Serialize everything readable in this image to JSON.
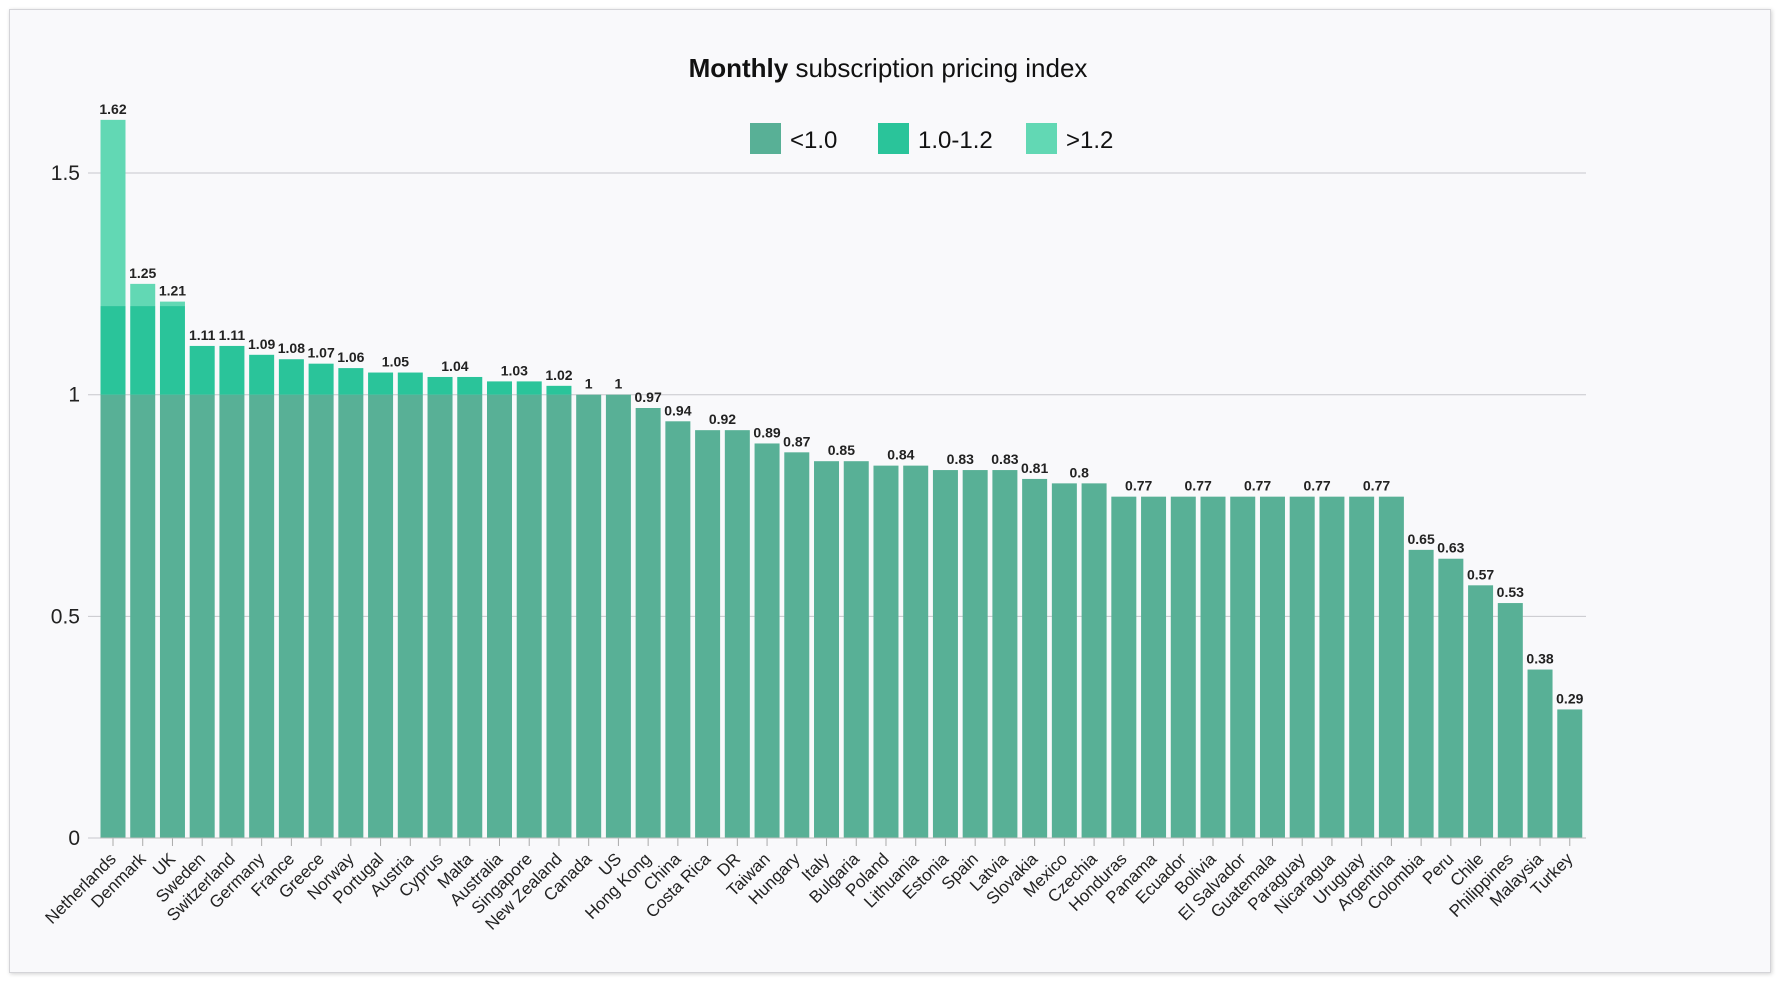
{
  "chart_data": {
    "type": "bar",
    "stacked_by_range": true,
    "title": "Monthly subscription pricing index",
    "title_bold": "Monthly",
    "title_rest": " subscription pricing index",
    "xlabel": "",
    "ylabel": "",
    "ylim": [
      0,
      1.62
    ],
    "yticks": [
      0,
      0.5,
      1,
      1.5
    ],
    "ytick_labels": [
      "0",
      "0.5",
      "1",
      "1.5"
    ],
    "grid": true,
    "legend_placement": "top-center",
    "legend": [
      {
        "label": "<1.0",
        "color": "#58b096"
      },
      {
        "label": "1.0-1.2",
        "color": "#2ac49a"
      },
      {
        "label": ">1.2",
        "color": "#62d8b4"
      }
    ],
    "thresholds": [
      1.0,
      1.2
    ],
    "categories": [
      "Netherlands",
      "Denmark",
      "UK",
      "Sweden",
      "Switzerland",
      "Germany",
      "France",
      "Greece",
      "Norway",
      "Portugal",
      "Austria",
      "Cyprus",
      "Malta",
      "Australia",
      "Singapore",
      "New Zealand",
      "Canada",
      "US",
      "Hong Kong",
      "China",
      "Costa Rica",
      "DR",
      "Taiwan",
      "Hungary",
      "Italy",
      "Bulgaria",
      "Poland",
      "Lithuania",
      "Estonia",
      "Spain",
      "Latvia",
      "Slovakia",
      "Mexico",
      "Czechia",
      "Honduras",
      "Panama",
      "Ecuador",
      "Bolivia",
      "El Salvador",
      "Guatemala",
      "Paraguay",
      "Nicaragua",
      "Uruguay",
      "Argentina",
      "Colombia",
      "Peru",
      "Chile",
      "Philippines",
      "Malaysia",
      "Turkey"
    ],
    "values": [
      1.62,
      1.25,
      1.21,
      1.11,
      1.11,
      1.09,
      1.08,
      1.07,
      1.06,
      1.05,
      1.05,
      1.04,
      1.04,
      1.03,
      1.03,
      1.02,
      1,
      1,
      0.97,
      0.94,
      0.92,
      0.92,
      0.89,
      0.87,
      0.85,
      0.85,
      0.84,
      0.84,
      0.83,
      0.83,
      0.83,
      0.81,
      0.8,
      0.8,
      0.77,
      0.77,
      0.77,
      0.77,
      0.77,
      0.77,
      0.77,
      0.77,
      0.77,
      0.77,
      0.65,
      0.63,
      0.57,
      0.53,
      0.38,
      0.29
    ],
    "value_labels": [
      {
        "text": "1.62",
        "bars": [
          "Netherlands"
        ]
      },
      {
        "text": "1.25",
        "bars": [
          "Denmark"
        ]
      },
      {
        "text": "1.21",
        "bars": [
          "UK"
        ]
      },
      {
        "text": "1.11",
        "bars": [
          "Sweden"
        ]
      },
      {
        "text": "1.11",
        "bars": [
          "Switzerland"
        ]
      },
      {
        "text": "1.09",
        "bars": [
          "Germany"
        ]
      },
      {
        "text": "1.08",
        "bars": [
          "France"
        ]
      },
      {
        "text": "1.07",
        "bars": [
          "Greece"
        ]
      },
      {
        "text": "1.06",
        "bars": [
          "Norway"
        ]
      },
      {
        "text": "1.05",
        "bars": [
          "Portugal",
          "Austria"
        ]
      },
      {
        "text": "1.04",
        "bars": [
          "Cyprus",
          "Malta"
        ]
      },
      {
        "text": "1.03",
        "bars": [
          "Australia",
          "Singapore"
        ]
      },
      {
        "text": "1.02",
        "bars": [
          "New Zealand"
        ]
      },
      {
        "text": "1",
        "bars": [
          "Canada"
        ]
      },
      {
        "text": "1",
        "bars": [
          "US"
        ]
      },
      {
        "text": "0.97",
        "bars": [
          "Hong Kong"
        ]
      },
      {
        "text": "0.94",
        "bars": [
          "China"
        ]
      },
      {
        "text": "0.92",
        "bars": [
          "Costa Rica",
          "DR"
        ]
      },
      {
        "text": "0.89",
        "bars": [
          "Taiwan"
        ]
      },
      {
        "text": "0.87",
        "bars": [
          "Hungary"
        ]
      },
      {
        "text": "0.85",
        "bars": [
          "Italy",
          "Bulgaria"
        ]
      },
      {
        "text": "0.84",
        "bars": [
          "Poland",
          "Lithuania"
        ]
      },
      {
        "text": "0.83",
        "bars": [
          "Estonia",
          "Spain"
        ]
      },
      {
        "text": "0.83",
        "bars": [
          "Latvia"
        ]
      },
      {
        "text": "0.81",
        "bars": [
          "Slovakia"
        ]
      },
      {
        "text": "0.8",
        "bars": [
          "Mexico",
          "Czechia"
        ]
      },
      {
        "text": "0.77",
        "bars": [
          "Honduras",
          "Panama"
        ]
      },
      {
        "text": "0.77",
        "bars": [
          "Ecuador",
          "Bolivia"
        ]
      },
      {
        "text": "0.77",
        "bars": [
          "El Salvador",
          "Guatemala"
        ]
      },
      {
        "text": "0.77",
        "bars": [
          "Paraguay",
          "Nicaragua"
        ]
      },
      {
        "text": "0.77",
        "bars": [
          "Uruguay",
          "Argentina"
        ]
      },
      {
        "text": "0.65",
        "bars": [
          "Colombia"
        ]
      },
      {
        "text": "0.63",
        "bars": [
          "Peru"
        ]
      },
      {
        "text": "0.57",
        "bars": [
          "Chile"
        ]
      },
      {
        "text": "0.53",
        "bars": [
          "Philippines"
        ]
      },
      {
        "text": "0.38",
        "bars": [
          "Malaysia"
        ]
      },
      {
        "text": "0.29",
        "bars": [
          "Turkey"
        ]
      }
    ]
  }
}
